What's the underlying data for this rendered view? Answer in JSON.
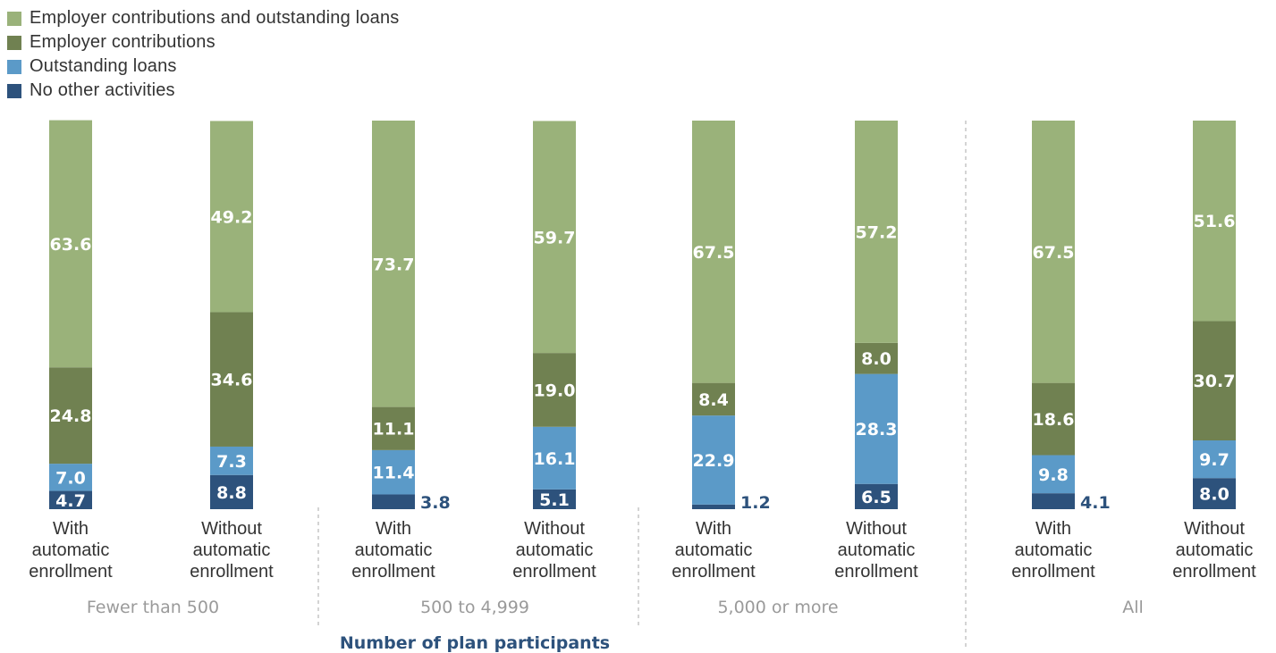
{
  "chart_data": {
    "type": "bar",
    "stacked": true,
    "percent_stacked": true,
    "xlabel": "Number of plan participants",
    "groups": [
      "Fewer than 500",
      "500 to 4,999",
      "5,000 or more",
      "All"
    ],
    "categories": [
      {
        "group": "Fewer than 500",
        "label": [
          "With",
          "automatic",
          "enrollment"
        ]
      },
      {
        "group": "Fewer than 500",
        "label": [
          "Without",
          "automatic",
          "enrollment"
        ]
      },
      {
        "group": "500 to 4,999",
        "label": [
          "With",
          "automatic",
          "enrollment"
        ]
      },
      {
        "group": "500 to 4,999",
        "label": [
          "Without",
          "automatic",
          "enrollment"
        ]
      },
      {
        "group": "5,000 or more",
        "label": [
          "With",
          "automatic",
          "enrollment"
        ]
      },
      {
        "group": "5,000 or more",
        "label": [
          "Without",
          "automatic",
          "enrollment"
        ]
      },
      {
        "group": "All",
        "label": [
          "With",
          "automatic",
          "enrollment"
        ]
      },
      {
        "group": "All",
        "label": [
          "Without",
          "automatic",
          "enrollment"
        ]
      }
    ],
    "series": [
      {
        "name": "No other activities",
        "color": "#2d527c",
        "values": [
          4.7,
          8.8,
          3.8,
          5.1,
          1.2,
          6.5,
          4.1,
          8.0
        ]
      },
      {
        "name": "Outstanding loans",
        "color": "#5b9ac8",
        "values": [
          7.0,
          7.3,
          11.4,
          16.1,
          22.9,
          28.3,
          9.8,
          9.7
        ]
      },
      {
        "name": "Employer contributions",
        "color": "#708151",
        "values": [
          24.8,
          34.6,
          11.1,
          19.0,
          8.4,
          8.0,
          18.6,
          30.7
        ]
      },
      {
        "name": "Employer contributions and outstanding loans",
        "color": "#9ab27a",
        "values": [
          63.6,
          49.2,
          73.7,
          59.7,
          67.5,
          57.2,
          67.5,
          51.6
        ]
      }
    ],
    "legend_order": [
      "Employer contributions and outstanding loans",
      "Employer contributions",
      "Outstanding loans",
      "No other activities"
    ],
    "legend_position": "top-left",
    "ylim": [
      0,
      100
    ],
    "grid": false
  }
}
